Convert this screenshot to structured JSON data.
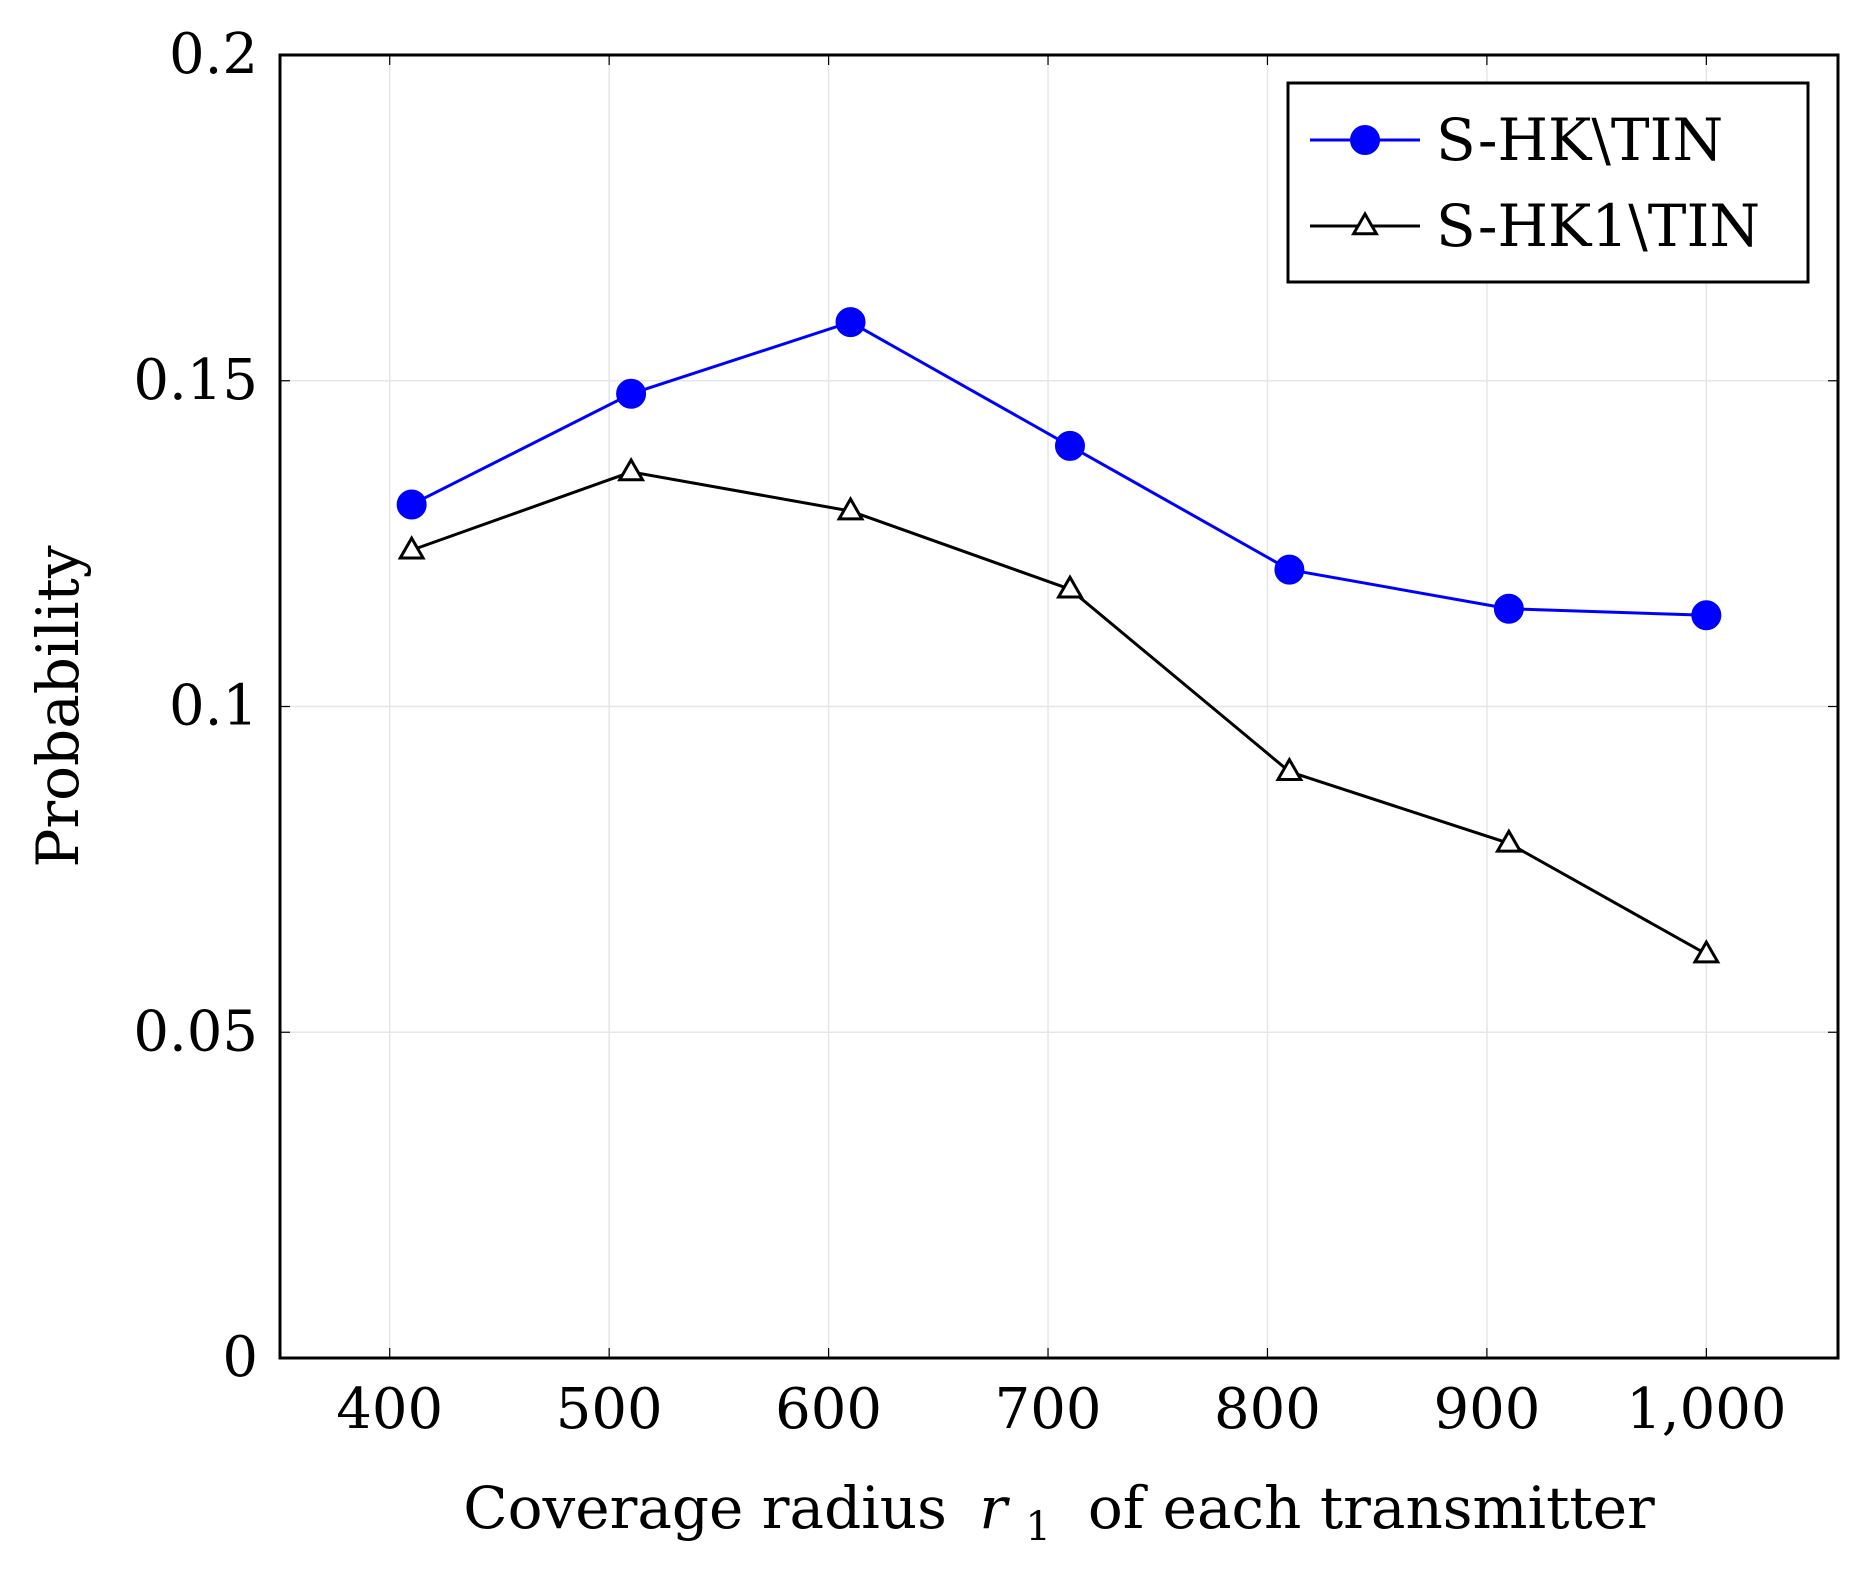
{
  "chart_data": {
    "type": "line",
    "title": "",
    "xlabel": "Coverage radius",
    "xlabel_var": "r",
    "xlabel_sub": "1",
    "xlabel_tail": " of each transmitter",
    "ylabel": "Probability",
    "xlim": [
      350,
      1060
    ],
    "ylim": [
      0,
      0.2
    ],
    "xticks": [
      400,
      500,
      600,
      700,
      800,
      900,
      1000
    ],
    "xtick_labels": [
      "400",
      "500",
      "600",
      "700",
      "800",
      "900",
      "1,000"
    ],
    "yticks": [
      0,
      0.05,
      0.1,
      0.15,
      0.2
    ],
    "ytick_labels": [
      "0",
      "0.05",
      "0.1",
      "0.15",
      "0.2"
    ],
    "grid": true,
    "legend_position": "top-right",
    "series": [
      {
        "name": "S-HK\\TIN",
        "color": "#0000ff",
        "marker": "circle",
        "x": [
          410,
          510,
          610,
          710,
          810,
          910,
          1000
        ],
        "y": [
          0.131,
          0.148,
          0.159,
          0.14,
          0.121,
          0.115,
          0.114
        ]
      },
      {
        "name": "S-HK1\\TIN",
        "color": "#000000",
        "marker": "triangle",
        "x": [
          410,
          510,
          610,
          710,
          810,
          910,
          1000
        ],
        "y": [
          0.124,
          0.136,
          0.13,
          0.118,
          0.09,
          0.079,
          0.062
        ]
      }
    ]
  }
}
